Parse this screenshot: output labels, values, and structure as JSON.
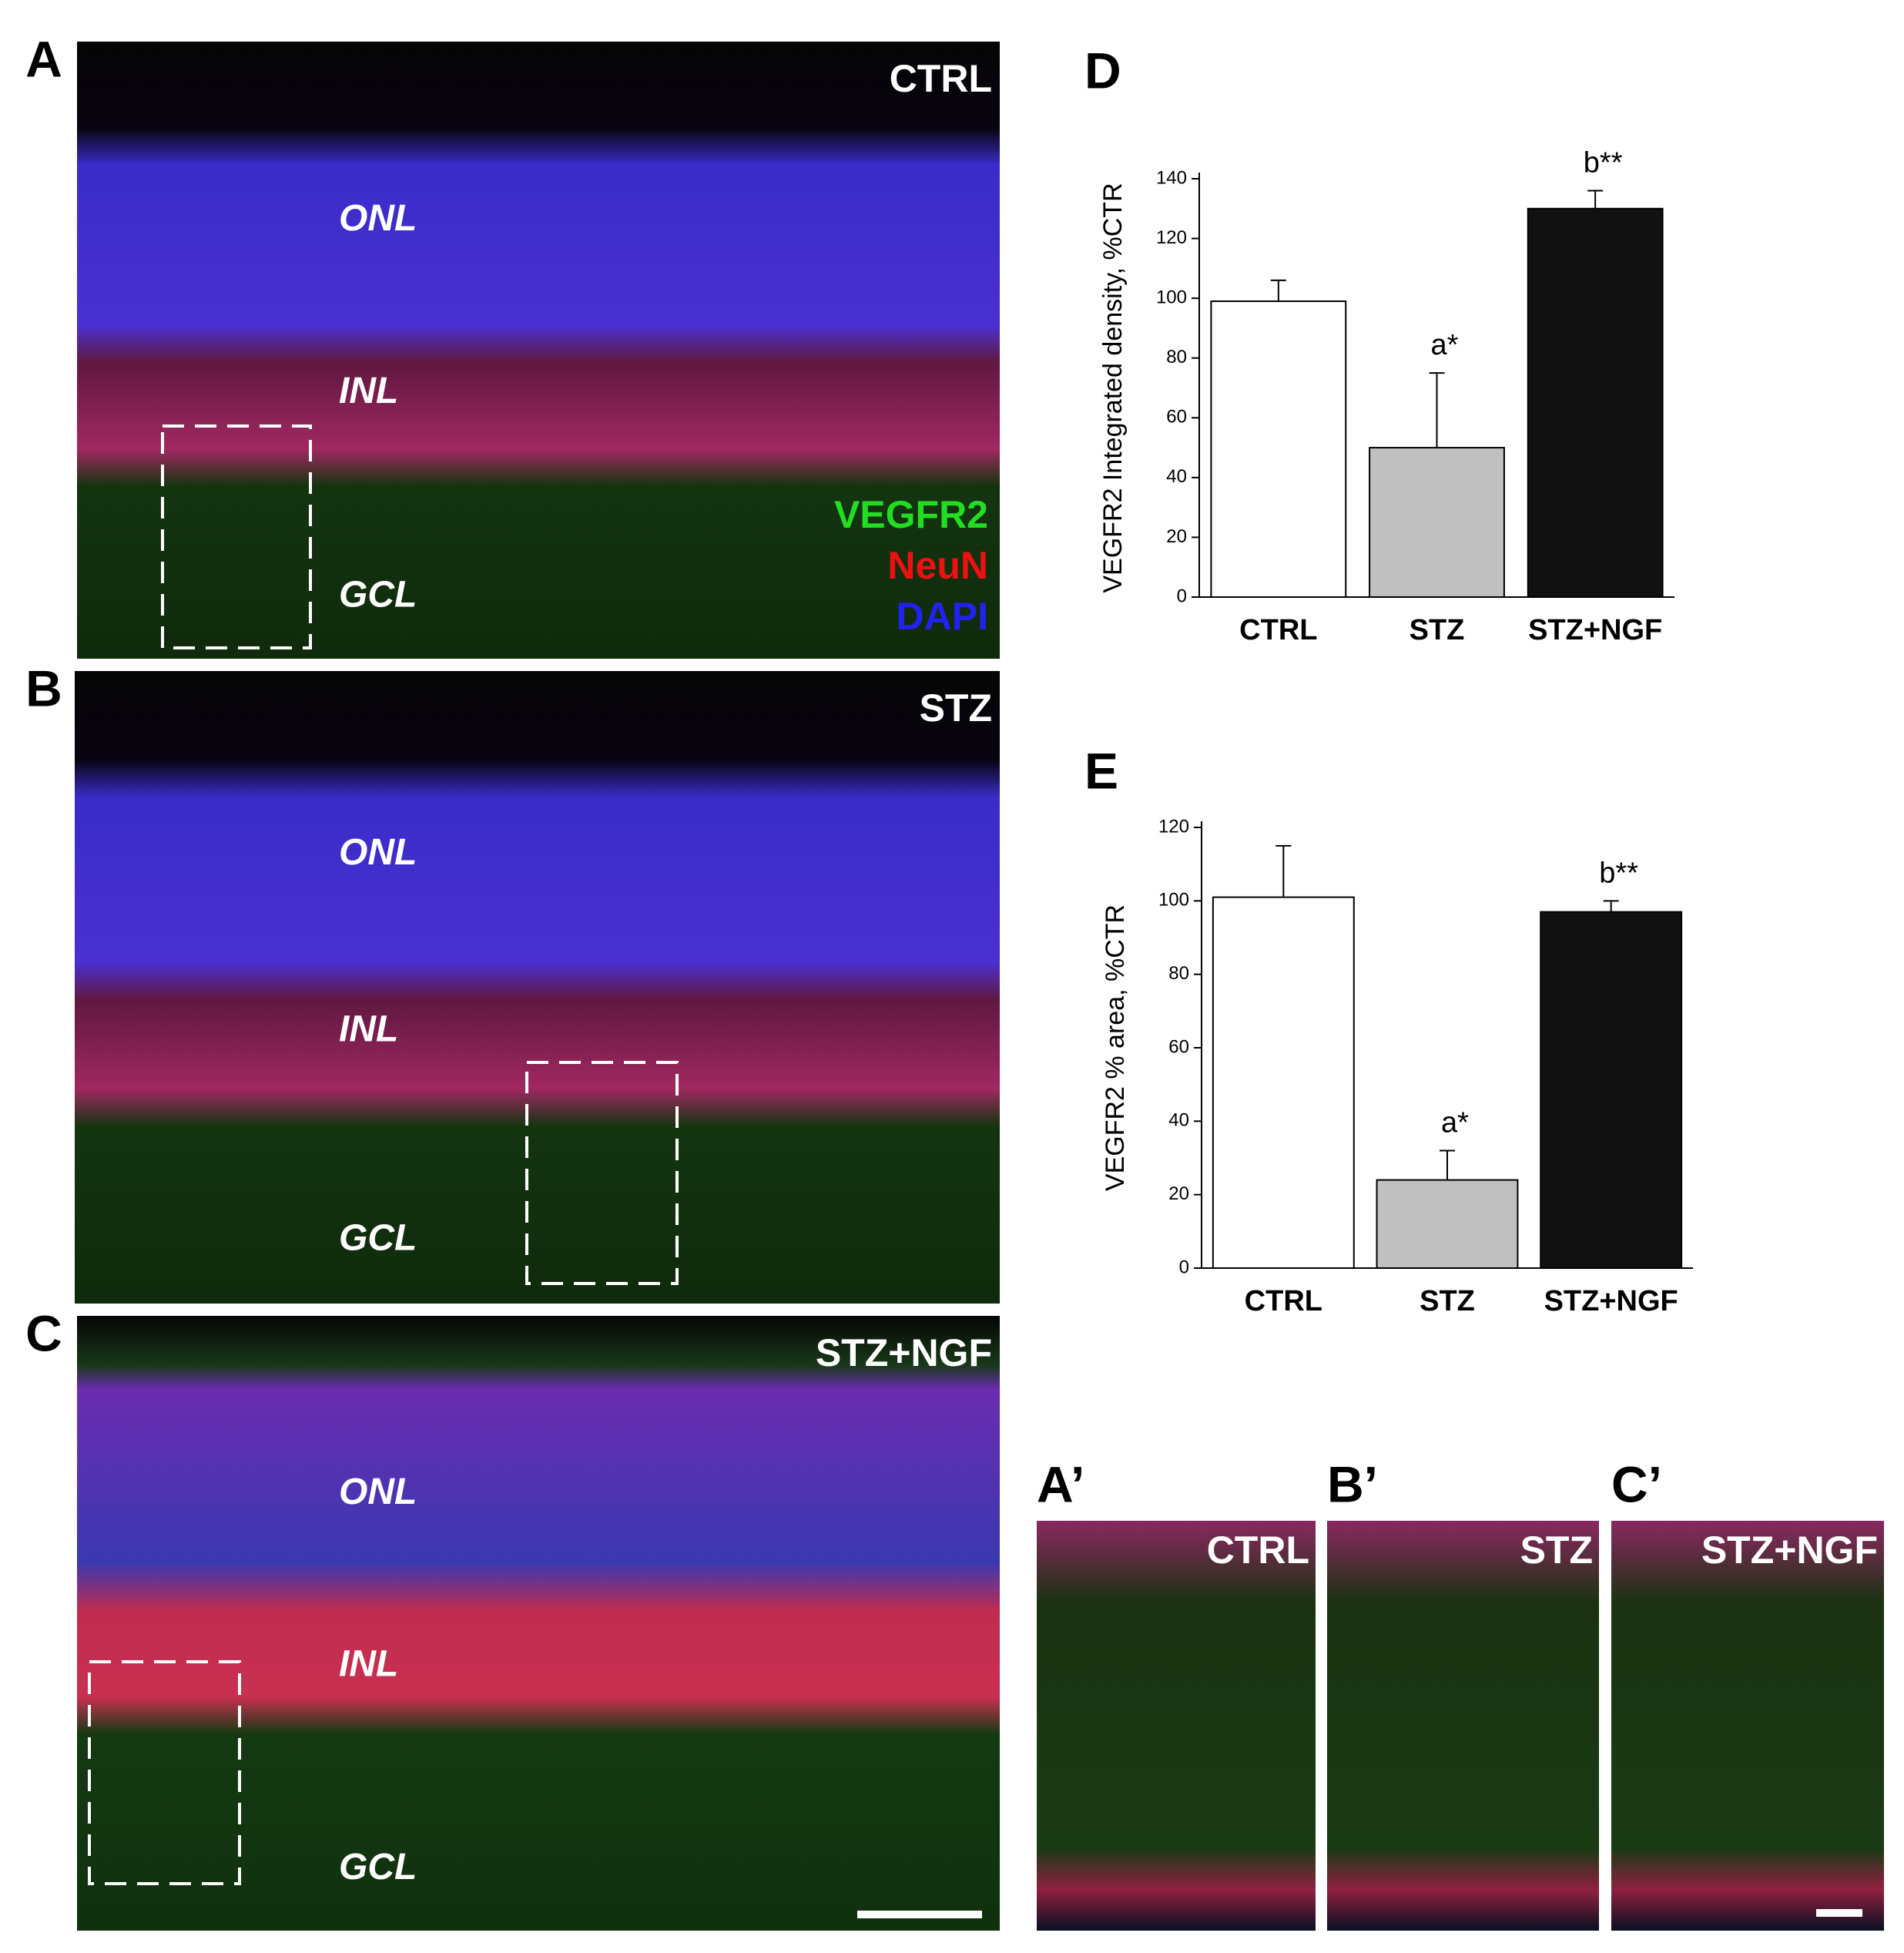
{
  "chart_data": [
    {
      "type": "bar",
      "panel_label": "D",
      "y_label": "VEGFR2 Integrated density, %CTR",
      "categories": [
        "CTRL",
        "STZ",
        "STZ+NGF"
      ],
      "values": [
        99,
        50,
        130
      ],
      "errors": [
        7,
        25,
        6
      ],
      "value_annotations": [
        null,
        "a*",
        "b**"
      ],
      "colors": [
        "#ffffff",
        "#c0c0c0",
        "#111111"
      ],
      "ylim": [
        0,
        140
      ],
      "yticks": [
        0,
        20,
        40,
        60,
        80,
        100,
        120,
        140
      ]
    },
    {
      "type": "bar",
      "panel_label": "E",
      "y_label": "VEGFR2 % area, %CTR",
      "categories": [
        "CTRL",
        "STZ",
        "STZ+NGF"
      ],
      "values": [
        101,
        24,
        97
      ],
      "errors": [
        14,
        8,
        3
      ],
      "value_annotations": [
        null,
        "a*",
        "b**"
      ],
      "colors": [
        "#ffffff",
        "#c0c0c0",
        "#111111"
      ],
      "ylim": [
        0,
        120
      ],
      "yticks": [
        0,
        20,
        40,
        60,
        80,
        100,
        120
      ]
    }
  ],
  "micrographs": {
    "panels": [
      {
        "letter": "A",
        "condition": "CTRL",
        "layers": [
          "ONL",
          "INL",
          "GCL"
        ]
      },
      {
        "letter": "B",
        "condition": "STZ",
        "layers": [
          "ONL",
          "INL",
          "GCL"
        ]
      },
      {
        "letter": "C",
        "condition": "STZ+NGF",
        "layers": [
          "ONL",
          "INL",
          "GCL"
        ]
      }
    ],
    "legend": [
      {
        "text": "VEGFR2",
        "color": "#22dd22"
      },
      {
        "text": "NeuN",
        "color": "#ee1111"
      },
      {
        "text": "DAPI",
        "color": "#2222ee"
      }
    ],
    "insets": [
      {
        "letter": "A’",
        "condition": "CTRL"
      },
      {
        "letter": "B’",
        "condition": "STZ"
      },
      {
        "letter": "C’",
        "condition": "STZ+NGF"
      }
    ]
  }
}
